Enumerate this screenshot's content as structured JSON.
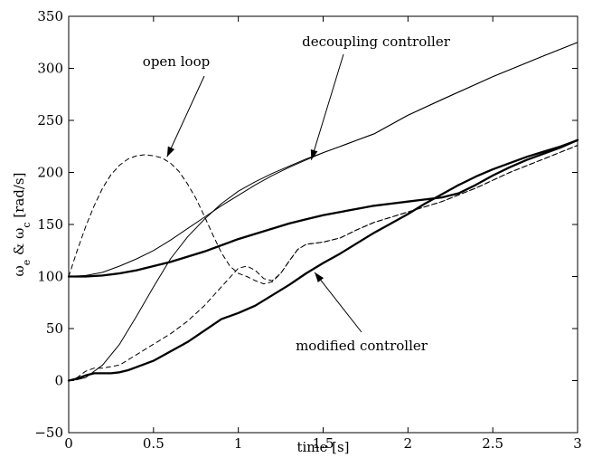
{
  "chart_data": {
    "type": "line",
    "xlabel": "time [s]",
    "ylabel_parts": [
      "ω",
      "e",
      " & ω",
      "c",
      " [rad/s]"
    ],
    "xlim": [
      0,
      3
    ],
    "ylim": [
      -50,
      350
    ],
    "xticks": [
      0,
      0.5,
      1,
      1.5,
      2,
      2.5,
      3
    ],
    "xtick_labels": [
      "0",
      "0.5",
      "1",
      "1.5",
      "2",
      "2.5",
      "3"
    ],
    "yticks": [
      -50,
      0,
      50,
      100,
      150,
      200,
      250,
      300,
      350
    ],
    "ytick_labels": [
      "−50",
      "0",
      "50",
      "100",
      "150",
      "200",
      "250",
      "300",
      "350"
    ],
    "grid": false,
    "series": [
      {
        "style": "solid-thin",
        "x": [
          0,
          0.1,
          0.2,
          0.3,
          0.4,
          0.5,
          0.6,
          0.7,
          0.8,
          0.9,
          1.0,
          1.1,
          1.2,
          1.3,
          1.4,
          1.5,
          1.6,
          1.7,
          1.8,
          2.0,
          2.2,
          2.5,
          2.8,
          3.0
        ],
        "values": [
          100,
          101,
          104,
          110,
          117,
          125,
          135,
          146,
          157,
          168,
          178,
          188,
          197,
          205,
          212,
          219,
          225,
          231,
          237,
          255,
          270,
          292,
          312,
          325
        ]
      },
      {
        "style": "solid-thin",
        "x": [
          0,
          0.05,
          0.1,
          0.2,
          0.3,
          0.4,
          0.5,
          0.6,
          0.7,
          0.8,
          0.9,
          1.0,
          1.1,
          1.2,
          1.3,
          1.4,
          1.5,
          1.6,
          1.7,
          1.8,
          2.0,
          2.2,
          2.5,
          2.8,
          3.0
        ],
        "values": [
          0,
          1,
          3,
          15,
          35,
          62,
          90,
          117,
          138,
          155,
          170,
          182,
          191,
          199,
          206,
          213,
          219,
          225,
          231,
          237,
          255,
          270,
          292,
          312,
          325
        ]
      },
      {
        "style": "solid-thick",
        "x": [
          0,
          0.1,
          0.2,
          0.3,
          0.4,
          0.5,
          0.6,
          0.7,
          0.8,
          0.9,
          1.0,
          1.1,
          1.2,
          1.3,
          1.4,
          1.5,
          1.6,
          1.7,
          1.8,
          1.9,
          2.0,
          2.1,
          2.2,
          2.3,
          2.4,
          2.5,
          2.6,
          2.7,
          2.8,
          2.9,
          3.0
        ],
        "values": [
          100,
          100,
          101,
          103,
          106,
          110,
          114,
          119,
          124,
          130,
          136,
          141,
          146,
          151,
          155,
          159,
          162,
          165,
          168,
          170,
          172,
          174,
          176,
          180,
          188,
          197,
          205,
          212,
          218,
          224,
          231
        ]
      },
      {
        "style": "solid-thick",
        "x": [
          0,
          0.05,
          0.1,
          0.15,
          0.2,
          0.25,
          0.3,
          0.35,
          0.4,
          0.5,
          0.6,
          0.7,
          0.8,
          0.9,
          1.0,
          1.1,
          1.2,
          1.3,
          1.4,
          1.5,
          1.6,
          1.7,
          1.8,
          1.9,
          2.0,
          2.1,
          2.2,
          2.3,
          2.4,
          2.5,
          2.6,
          2.7,
          2.8,
          2.9,
          3.0
        ],
        "values": [
          0,
          2,
          5,
          7,
          7,
          7,
          8,
          10,
          13,
          19,
          28,
          37,
          48,
          59,
          65,
          72,
          82,
          92,
          103,
          113,
          122,
          132,
          142,
          151,
          160,
          170,
          179,
          188,
          196,
          203,
          209,
          215,
          220,
          225,
          231
        ]
      },
      {
        "style": "dashed",
        "x": [
          0,
          0.05,
          0.1,
          0.15,
          0.2,
          0.25,
          0.3,
          0.35,
          0.4,
          0.45,
          0.5,
          0.55,
          0.6,
          0.65,
          0.7,
          0.75,
          0.8,
          0.85,
          0.9,
          0.95,
          1.0,
          1.05,
          1.1,
          1.15,
          1.2,
          1.25,
          1.3,
          1.35,
          1.4,
          1.5,
          1.6,
          1.7,
          1.8,
          1.9,
          2.0,
          2.2,
          2.4,
          2.6,
          2.8,
          3.0
        ],
        "values": [
          100,
          125,
          148,
          168,
          185,
          198,
          207,
          213,
          216,
          217,
          216,
          214,
          209,
          201,
          189,
          175,
          158,
          140,
          123,
          110,
          103,
          100,
          96,
          93,
          95,
          103,
          115,
          126,
          131,
          133,
          137,
          145,
          152,
          157,
          162,
          172,
          185,
          200,
          213,
          226
        ]
      },
      {
        "style": "dashed",
        "x": [
          0,
          0.05,
          0.1,
          0.15,
          0.2,
          0.3,
          0.4,
          0.5,
          0.6,
          0.7,
          0.8,
          0.9,
          1.0,
          1.05,
          1.1,
          1.15,
          1.2,
          1.25,
          1.3,
          1.35,
          1.4,
          1.5,
          1.6,
          1.7,
          1.8,
          1.9,
          2.0,
          2.2,
          2.4,
          2.6,
          2.8,
          3.0
        ],
        "values": [
          0,
          3,
          9,
          12,
          12,
          15,
          25,
          35,
          45,
          57,
          72,
          90,
          108,
          110,
          106,
          98,
          96,
          103,
          115,
          126,
          131,
          133,
          137,
          145,
          152,
          157,
          162,
          172,
          185,
          200,
          213,
          226
        ]
      }
    ],
    "annotations": [
      {
        "text": "decoupling controller",
        "point_x": 1.43,
        "point_y": 212
      },
      {
        "text": "open loop",
        "point_x": 0.58,
        "point_y": 215
      },
      {
        "text": "modified controller",
        "point_x": 1.45,
        "point_y": 104
      }
    ]
  }
}
